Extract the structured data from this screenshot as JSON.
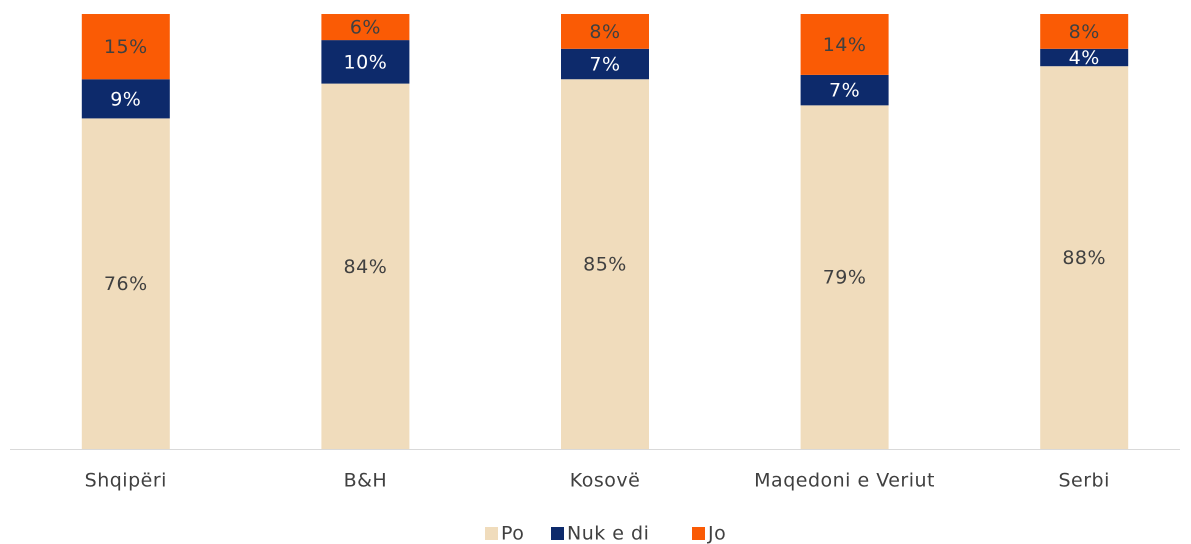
{
  "chart_data": {
    "type": "stacked_bar",
    "categories": [
      "Shqipëri",
      "B&H",
      "Kosovë",
      "Maqedoni e Veriut",
      "Serbi"
    ],
    "series": [
      {
        "name": "Po",
        "color": "#f0dcbc",
        "label_color": "#404040",
        "values": [
          76,
          84,
          85,
          79,
          88
        ],
        "value_labels": [
          "76%",
          "84%",
          "85%",
          "79%",
          "88%"
        ]
      },
      {
        "name": "Nuk e di",
        "color": "#0d2a6b",
        "label_color": "#ffffff",
        "values": [
          9,
          10,
          7,
          7,
          4
        ],
        "value_labels": [
          "9%",
          "10%",
          "7%",
          "7%",
          "4%"
        ]
      },
      {
        "name": "Jo",
        "color": "#fa5b05",
        "label_color": "#404040",
        "values": [
          15,
          6,
          8,
          14,
          8
        ],
        "value_labels": [
          "15%",
          "6%",
          "8%",
          "14%",
          "8%"
        ]
      }
    ],
    "ylim": [
      0,
      100
    ],
    "legend": "bottom"
  }
}
